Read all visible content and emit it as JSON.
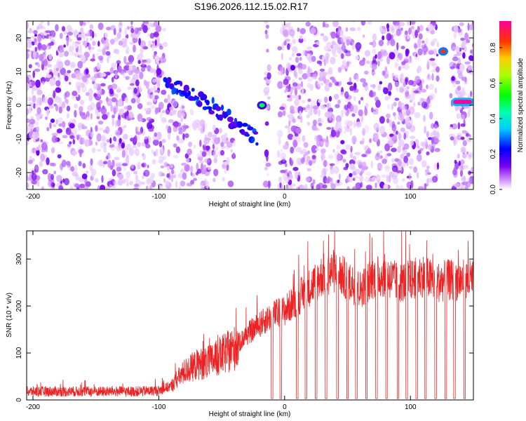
{
  "title": "S196.2026.112.15.02.R17",
  "chart_data": [
    {
      "type": "heatmap",
      "title": "S196.2026.112.15.02.R17",
      "xlabel": "Height of straight line (km)",
      "ylabel": "Frequency (Hz)",
      "xlim": [
        -205,
        150
      ],
      "ylim": [
        -25,
        25
      ],
      "xticks": [
        -200,
        -100,
        0,
        100
      ],
      "yticks": [
        -20,
        -10,
        0,
        10,
        20
      ],
      "colorbar": {
        "label": "Normalized spectral amplitude",
        "range": [
          0,
          0.95
        ],
        "ticks": [
          "0.0",
          "0.2",
          "0.4",
          "0.6",
          "0.8"
        ],
        "ticks_values": [
          0,
          0.2,
          0.4,
          0.6,
          0.8
        ],
        "colormap": [
          "#ffffff",
          "#cc99ff",
          "#5500dd",
          "#0000ff",
          "#00ffff",
          "#00ff00",
          "#ffff00",
          "#ff8800",
          "#ff0000",
          "#ff0088"
        ]
      },
      "gaps_km": [
        [
          -95,
          -15
        ],
        [
          -12,
          -5
        ],
        [
          122,
          132
        ]
      ],
      "features": [
        {
          "name": "descending echo",
          "x_start_km": -95,
          "x_end_km": -22,
          "freq_start_hz": 6,
          "freq_end_hz": -10,
          "max_amplitude": 0.25
        },
        {
          "name": "echo near zero",
          "x_km": -18,
          "freq_hz": 0,
          "max_amplitude": 0.5
        },
        {
          "name": "line at 16 Hz",
          "x_km": 126,
          "freq_hz": 16,
          "max_amplitude": 0.85
        },
        {
          "name": "line at 1 Hz",
          "x_start_km": 133,
          "x_end_km": 150,
          "freq_hz": 1,
          "max_amplitude": 0.95
        }
      ]
    },
    {
      "type": "line",
      "xlabel": "Height of straight line (km)",
      "ylabel": "SNR (10 * v/v)",
      "xlim": [
        -205,
        150
      ],
      "ylim": [
        0,
        360
      ],
      "xticks": [
        -200,
        -100,
        0,
        100
      ],
      "yticks": [
        0,
        100,
        200,
        300
      ],
      "color": "#ee2222",
      "series": [
        {
          "name": "SNR",
          "x": [
            -205,
            -180,
            -150,
            -120,
            -100,
            -90,
            -80,
            -70,
            -60,
            -50,
            -40,
            -30,
            -20,
            -10,
            0,
            10,
            20,
            30,
            40,
            50,
            60,
            70,
            80,
            90,
            100,
            110,
            120,
            130,
            140,
            150
          ],
          "values": [
            18,
            18,
            18,
            18,
            20,
            30,
            60,
            75,
            80,
            95,
            110,
            140,
            160,
            180,
            190,
            215,
            240,
            265,
            275,
            255,
            235,
            260,
            265,
            250,
            255,
            265,
            250,
            255,
            255,
            255
          ]
        }
      ],
      "dropout_km": [
        -10,
        -3,
        10,
        17,
        25,
        33,
        42,
        50,
        57,
        65,
        73,
        81,
        90,
        97,
        105,
        112,
        120,
        128,
        135,
        143
      ]
    }
  ]
}
